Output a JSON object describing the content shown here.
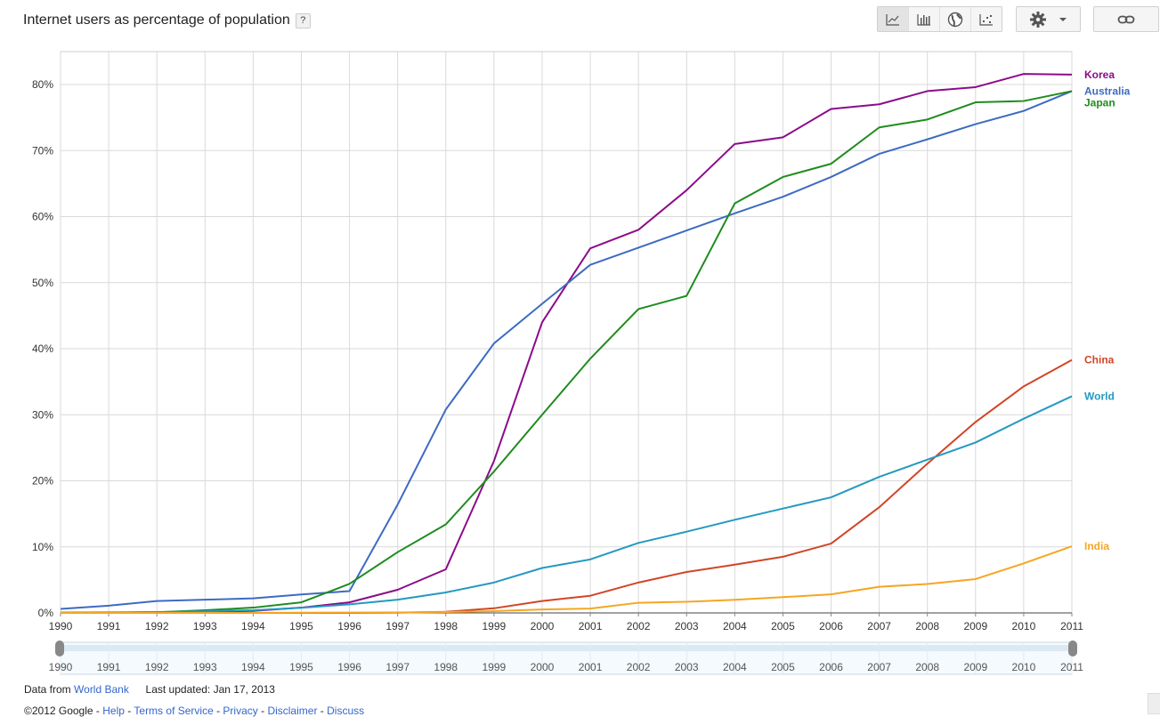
{
  "header": {
    "title": "Internet users as percentage of population",
    "help": "?"
  },
  "toolbar": {
    "buttons": [
      {
        "icon": "line-chart-icon",
        "active": true
      },
      {
        "icon": "bar-chart-icon",
        "active": false
      },
      {
        "icon": "globe-map-icon",
        "active": false
      },
      {
        "icon": "scatter-plot-icon",
        "active": false
      }
    ],
    "settings_icon": "gear-icon",
    "link_icon": "link-icon"
  },
  "chart_data": {
    "type": "line",
    "title": "Internet users as percentage of population",
    "x": [
      1990,
      1991,
      1992,
      1993,
      1994,
      1995,
      1996,
      1997,
      1998,
      1999,
      2000,
      2001,
      2002,
      2003,
      2004,
      2005,
      2006,
      2007,
      2008,
      2009,
      2010,
      2011
    ],
    "xlim": [
      1990,
      2011
    ],
    "ylim": [
      0,
      85
    ],
    "yticks": [
      0,
      10,
      20,
      30,
      40,
      50,
      60,
      70,
      80
    ],
    "ytick_labels": [
      "0%",
      "10%",
      "20%",
      "30%",
      "40%",
      "50%",
      "60%",
      "70%",
      "80%"
    ],
    "grid": true,
    "legend": "right-end labels",
    "series": [
      {
        "name": "Korea",
        "color": "#8b0b8b",
        "values": [
          0.02,
          0.05,
          0.1,
          0.2,
          0.3,
          0.8,
          1.6,
          3.5,
          6.6,
          23.0,
          44.0,
          55.2,
          58.0,
          64.0,
          71.0,
          72.0,
          76.3,
          77.0,
          79.0,
          79.6,
          81.6,
          81.5
        ]
      },
      {
        "name": "Australia",
        "color": "#3d6bc2",
        "values": [
          0.6,
          1.1,
          1.8,
          2.0,
          2.2,
          2.8,
          3.3,
          16.4,
          30.8,
          40.8,
          46.8,
          52.7,
          55.3,
          57.9,
          60.5,
          63.0,
          66.0,
          69.5,
          71.7,
          74.0,
          76.0,
          79.0
        ]
      },
      {
        "name": "Japan",
        "color": "#1e8c1e",
        "values": [
          0.02,
          0.04,
          0.1,
          0.4,
          0.8,
          1.6,
          4.4,
          9.2,
          13.4,
          21.4,
          30.0,
          38.5,
          46.0,
          48.0,
          62.0,
          66.0,
          68.0,
          73.5,
          74.7,
          77.3,
          77.5,
          79.0
        ]
      },
      {
        "name": "China",
        "color": "#d14526",
        "values": [
          0.0,
          0.0,
          0.0,
          0.0,
          0.0,
          0.0,
          0.0,
          0.03,
          0.17,
          0.7,
          1.8,
          2.6,
          4.6,
          6.2,
          7.3,
          8.5,
          10.5,
          16.0,
          22.6,
          28.9,
          34.3,
          38.3
        ]
      },
      {
        "name": "World",
        "color": "#2499c1",
        "values": [
          0.05,
          0.08,
          0.12,
          0.25,
          0.4,
          0.78,
          1.3,
          2.0,
          3.1,
          4.6,
          6.8,
          8.1,
          10.6,
          12.3,
          14.1,
          15.8,
          17.5,
          20.6,
          23.2,
          25.8,
          29.4,
          32.8
        ]
      },
      {
        "name": "India",
        "color": "#f5a623",
        "values": [
          0.0,
          0.0,
          0.0,
          0.0,
          0.0,
          0.03,
          0.05,
          0.07,
          0.14,
          0.27,
          0.53,
          0.66,
          1.54,
          1.69,
          1.98,
          2.39,
          2.81,
          3.95,
          4.38,
          5.12,
          7.5,
          10.1
        ]
      }
    ]
  },
  "range_slider": {
    "labels": [
      "1990",
      "1991",
      "1992",
      "1993",
      "1994",
      "1995",
      "1996",
      "1997",
      "1998",
      "1999",
      "2000",
      "2001",
      "2002",
      "2003",
      "2004",
      "2005",
      "2006",
      "2007",
      "2008",
      "2009",
      "2010",
      "2011"
    ]
  },
  "footer": {
    "data_from_label": "Data from",
    "data_source": "World Bank",
    "last_updated": "Last updated: Jan 17, 2013",
    "copyright": "©2012 Google",
    "links": [
      "Help",
      "Terms of Service",
      "Privacy",
      "Disclaimer",
      "Discuss"
    ],
    "separator": " - "
  }
}
